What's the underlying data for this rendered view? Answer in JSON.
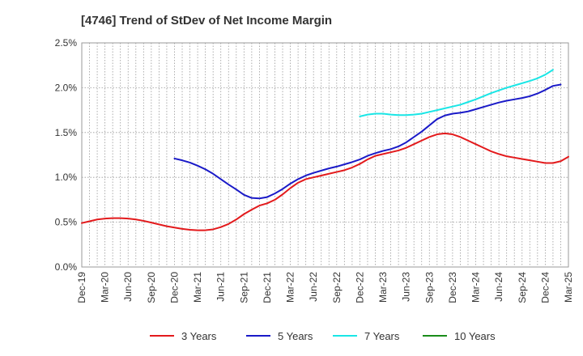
{
  "chart_data": {
    "type": "line",
    "title": "[4746]  Trend of StDev of Net Income Margin",
    "xlabel": "",
    "ylabel": "",
    "ylim": [
      0,
      2.5
    ],
    "y_ticks": [
      "0.0%",
      "0.5%",
      "1.0%",
      "1.5%",
      "2.0%",
      "2.5%"
    ],
    "x_ticks": [
      "Dec-19",
      "Mar-20",
      "Jun-20",
      "Sep-20",
      "Dec-20",
      "Mar-21",
      "Jun-21",
      "Sep-21",
      "Dec-21",
      "Mar-22",
      "Jun-22",
      "Sep-22",
      "Dec-22",
      "Mar-23",
      "Jun-23",
      "Sep-23",
      "Dec-23",
      "Mar-24",
      "Jun-24",
      "Sep-24",
      "Dec-24",
      "Mar-25"
    ],
    "grid": "vertical-and-horizontal dotted",
    "legend_position": "bottom",
    "series": [
      {
        "name": "3 Years",
        "color": "#e31a1c",
        "points": [
          [
            "Dec-19",
            0.49
          ],
          [
            "Jan-20",
            0.51
          ],
          [
            "Feb-20",
            0.53
          ],
          [
            "Mar-20",
            0.54
          ],
          [
            "Apr-20",
            0.545
          ],
          [
            "May-20",
            0.545
          ],
          [
            "Jun-20",
            0.54
          ],
          [
            "Jul-20",
            0.53
          ],
          [
            "Aug-20",
            0.515
          ],
          [
            "Sep-20",
            0.495
          ],
          [
            "Oct-20",
            0.475
          ],
          [
            "Nov-20",
            0.455
          ],
          [
            "Dec-20",
            0.44
          ],
          [
            "Jan-21",
            0.425
          ],
          [
            "Feb-21",
            0.415
          ],
          [
            "Mar-21",
            0.41
          ],
          [
            "Apr-21",
            0.41
          ],
          [
            "May-21",
            0.42
          ],
          [
            "Jun-21",
            0.445
          ],
          [
            "Jul-21",
            0.48
          ],
          [
            "Aug-21",
            0.53
          ],
          [
            "Sep-21",
            0.59
          ],
          [
            "Oct-21",
            0.64
          ],
          [
            "Nov-21",
            0.685
          ],
          [
            "Dec-21",
            0.71
          ],
          [
            "Jan-22",
            0.75
          ],
          [
            "Feb-22",
            0.81
          ],
          [
            "Mar-22",
            0.88
          ],
          [
            "Apr-22",
            0.94
          ],
          [
            "May-22",
            0.98
          ],
          [
            "Jun-22",
            1.0
          ],
          [
            "Jul-22",
            1.02
          ],
          [
            "Aug-22",
            1.04
          ],
          [
            "Sep-22",
            1.06
          ],
          [
            "Oct-22",
            1.08
          ],
          [
            "Nov-22",
            1.11
          ],
          [
            "Dec-22",
            1.15
          ],
          [
            "Jan-23",
            1.2
          ],
          [
            "Feb-23",
            1.24
          ],
          [
            "Mar-23",
            1.26
          ],
          [
            "Apr-23",
            1.28
          ],
          [
            "May-23",
            1.3
          ],
          [
            "Jun-23",
            1.33
          ],
          [
            "Jul-23",
            1.37
          ],
          [
            "Aug-23",
            1.41
          ],
          [
            "Sep-23",
            1.45
          ],
          [
            "Oct-23",
            1.48
          ],
          [
            "Nov-23",
            1.49
          ],
          [
            "Dec-23",
            1.48
          ],
          [
            "Jan-24",
            1.45
          ],
          [
            "Feb-24",
            1.41
          ],
          [
            "Mar-24",
            1.37
          ],
          [
            "Apr-24",
            1.33
          ],
          [
            "May-24",
            1.29
          ],
          [
            "Jun-24",
            1.26
          ],
          [
            "Jul-24",
            1.235
          ],
          [
            "Aug-24",
            1.22
          ],
          [
            "Sep-24",
            1.205
          ],
          [
            "Oct-24",
            1.19
          ],
          [
            "Nov-24",
            1.175
          ],
          [
            "Dec-24",
            1.16
          ],
          [
            "Jan-25",
            1.16
          ],
          [
            "Feb-25",
            1.18
          ],
          [
            "Mar-25",
            1.23
          ]
        ]
      },
      {
        "name": "5 Years",
        "color": "#1a1ac8",
        "points": [
          [
            "Dec-20",
            1.21
          ],
          [
            "Jan-21",
            1.19
          ],
          [
            "Feb-21",
            1.165
          ],
          [
            "Mar-21",
            1.13
          ],
          [
            "Apr-21",
            1.09
          ],
          [
            "May-21",
            1.04
          ],
          [
            "Jun-21",
            0.98
          ],
          [
            "Jul-21",
            0.92
          ],
          [
            "Aug-21",
            0.865
          ],
          [
            "Sep-21",
            0.805
          ],
          [
            "Oct-21",
            0.77
          ],
          [
            "Nov-21",
            0.765
          ],
          [
            "Dec-21",
            0.78
          ],
          [
            "Jan-22",
            0.82
          ],
          [
            "Feb-22",
            0.87
          ],
          [
            "Mar-22",
            0.93
          ],
          [
            "Apr-22",
            0.98
          ],
          [
            "May-22",
            1.02
          ],
          [
            "Jun-22",
            1.05
          ],
          [
            "Jul-22",
            1.075
          ],
          [
            "Aug-22",
            1.1
          ],
          [
            "Sep-22",
            1.12
          ],
          [
            "Oct-22",
            1.145
          ],
          [
            "Nov-22",
            1.17
          ],
          [
            "Dec-22",
            1.2
          ],
          [
            "Jan-23",
            1.24
          ],
          [
            "Feb-23",
            1.27
          ],
          [
            "Mar-23",
            1.295
          ],
          [
            "Apr-23",
            1.315
          ],
          [
            "May-23",
            1.345
          ],
          [
            "Jun-23",
            1.39
          ],
          [
            "Jul-23",
            1.45
          ],
          [
            "Aug-23",
            1.51
          ],
          [
            "Sep-23",
            1.58
          ],
          [
            "Oct-23",
            1.65
          ],
          [
            "Nov-23",
            1.69
          ],
          [
            "Dec-23",
            1.71
          ],
          [
            "Jan-24",
            1.72
          ],
          [
            "Feb-24",
            1.735
          ],
          [
            "Mar-24",
            1.76
          ],
          [
            "Apr-24",
            1.785
          ],
          [
            "May-24",
            1.81
          ],
          [
            "Jun-24",
            1.835
          ],
          [
            "Jul-24",
            1.855
          ],
          [
            "Aug-24",
            1.87
          ],
          [
            "Sep-24",
            1.885
          ],
          [
            "Oct-24",
            1.905
          ],
          [
            "Nov-24",
            1.935
          ],
          [
            "Dec-24",
            1.975
          ],
          [
            "Jan-25",
            2.02
          ],
          [
            "Feb-25",
            2.035
          ]
        ]
      },
      {
        "name": "7 Years",
        "color": "#1ae6e6",
        "points": [
          [
            "Dec-22",
            1.68
          ],
          [
            "Jan-23",
            1.7
          ],
          [
            "Feb-23",
            1.71
          ],
          [
            "Mar-23",
            1.71
          ],
          [
            "Apr-23",
            1.7
          ],
          [
            "May-23",
            1.695
          ],
          [
            "Jun-23",
            1.695
          ],
          [
            "Jul-23",
            1.7
          ],
          [
            "Aug-23",
            1.71
          ],
          [
            "Sep-23",
            1.73
          ],
          [
            "Oct-23",
            1.75
          ],
          [
            "Nov-23",
            1.77
          ],
          [
            "Dec-23",
            1.79
          ],
          [
            "Jan-24",
            1.81
          ],
          [
            "Feb-24",
            1.84
          ],
          [
            "Mar-24",
            1.87
          ],
          [
            "Apr-24",
            1.905
          ],
          [
            "May-24",
            1.94
          ],
          [
            "Jun-24",
            1.97
          ],
          [
            "Jul-24",
            2.0
          ],
          [
            "Aug-24",
            2.025
          ],
          [
            "Sep-24",
            2.05
          ],
          [
            "Oct-24",
            2.075
          ],
          [
            "Nov-24",
            2.105
          ],
          [
            "Dec-24",
            2.145
          ],
          [
            "Jan-25",
            2.2
          ]
        ]
      },
      {
        "name": "10 Years",
        "color": "#1a8c1a",
        "points": []
      }
    ]
  }
}
